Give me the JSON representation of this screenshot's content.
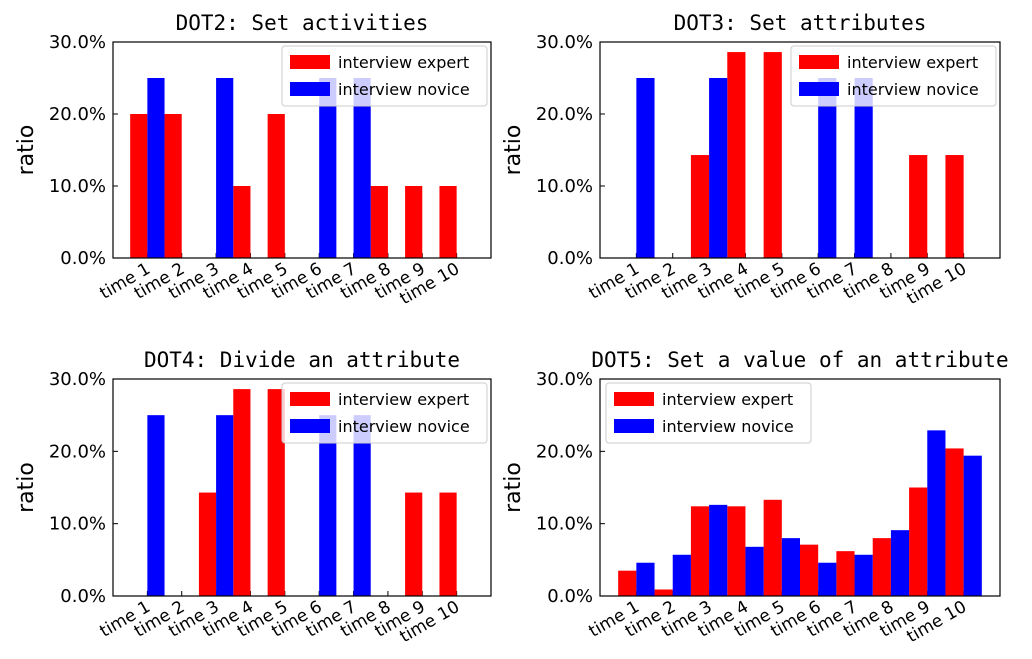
{
  "chart_data": [
    {
      "type": "bar",
      "title": "DOT2: Set activities",
      "ylabel": "ratio",
      "categories": [
        "time 1",
        "time 2",
        "time 3",
        "time 4",
        "time 5",
        "time 6",
        "time 7",
        "time 8",
        "time 9",
        "time 10"
      ],
      "series": [
        {
          "name": "interview expert",
          "color": "#ff0000",
          "values": [
            20,
            20,
            0,
            10,
            20,
            0,
            0,
            10,
            10,
            10
          ]
        },
        {
          "name": "interview novice",
          "color": "#0000ff",
          "values": [
            25,
            0,
            25,
            0,
            0,
            25,
            25,
            0,
            0,
            0
          ]
        }
      ],
      "ylim": [
        0,
        30
      ],
      "yticks": [
        {
          "value": 0,
          "label": "0.0%"
        },
        {
          "value": 10,
          "label": "10.0%"
        },
        {
          "value": 20,
          "label": "20.0%"
        },
        {
          "value": 30,
          "label": "30.0%"
        }
      ],
      "legend": "upper right"
    },
    {
      "type": "bar",
      "title": "DOT3: Set attributes",
      "ylabel": "ratio",
      "categories": [
        "time 1",
        "time 2",
        "time 3",
        "time 4",
        "time 5",
        "time 6",
        "time 7",
        "time 8",
        "time 9",
        "time 10"
      ],
      "series": [
        {
          "name": "interview expert",
          "color": "#ff0000",
          "values": [
            0,
            0,
            14.3,
            28.6,
            28.6,
            0,
            0,
            0,
            14.3,
            14.3
          ]
        },
        {
          "name": "interview novice",
          "color": "#0000ff",
          "values": [
            25,
            0,
            25,
            0,
            0,
            25,
            25,
            0,
            0,
            0
          ]
        }
      ],
      "ylim": [
        0,
        30
      ],
      "yticks": [
        {
          "value": 0,
          "label": "0.0%"
        },
        {
          "value": 10,
          "label": "10.0%"
        },
        {
          "value": 20,
          "label": "20.0%"
        },
        {
          "value": 30,
          "label": "30.0%"
        }
      ],
      "legend": "upper right"
    },
    {
      "type": "bar",
      "title": "DOT4: Divide an attribute",
      "ylabel": "ratio",
      "categories": [
        "time 1",
        "time 2",
        "time 3",
        "time 4",
        "time 5",
        "time 6",
        "time 7",
        "time 8",
        "time 9",
        "time 10"
      ],
      "series": [
        {
          "name": "interview expert",
          "color": "#ff0000",
          "values": [
            0,
            0,
            14.3,
            28.6,
            28.6,
            0,
            0,
            0,
            14.3,
            14.3
          ]
        },
        {
          "name": "interview novice",
          "color": "#0000ff",
          "values": [
            25,
            0,
            25,
            0,
            0,
            25,
            25,
            0,
            0,
            0
          ]
        }
      ],
      "ylim": [
        0,
        30
      ],
      "yticks": [
        {
          "value": 0,
          "label": "0.0%"
        },
        {
          "value": 10,
          "label": "10.0%"
        },
        {
          "value": 20,
          "label": "20.0%"
        },
        {
          "value": 30,
          "label": "30.0%"
        }
      ],
      "legend": "upper right"
    },
    {
      "type": "bar",
      "title": "DOT5: Set a value of an attribute",
      "ylabel": "ratio",
      "categories": [
        "time 1",
        "time 2",
        "time 3",
        "time 4",
        "time 5",
        "time 6",
        "time 7",
        "time 8",
        "time 9",
        "time 10"
      ],
      "series": [
        {
          "name": "interview expert",
          "color": "#ff0000",
          "values": [
            3.5,
            0.9,
            12.4,
            12.4,
            13.3,
            7.1,
            6.2,
            8.0,
            15.0,
            20.4
          ]
        },
        {
          "name": "interview novice",
          "color": "#0000ff",
          "values": [
            4.6,
            5.7,
            12.6,
            6.8,
            8.0,
            4.6,
            5.7,
            9.1,
            22.9,
            19.4
          ]
        }
      ],
      "ylim": [
        0,
        30
      ],
      "yticks": [
        {
          "value": 0,
          "label": "0.0%"
        },
        {
          "value": 10,
          "label": "10.0%"
        },
        {
          "value": 20,
          "label": "20.0%"
        },
        {
          "value": 30,
          "label": "30.0%"
        }
      ],
      "legend": "upper left"
    }
  ]
}
